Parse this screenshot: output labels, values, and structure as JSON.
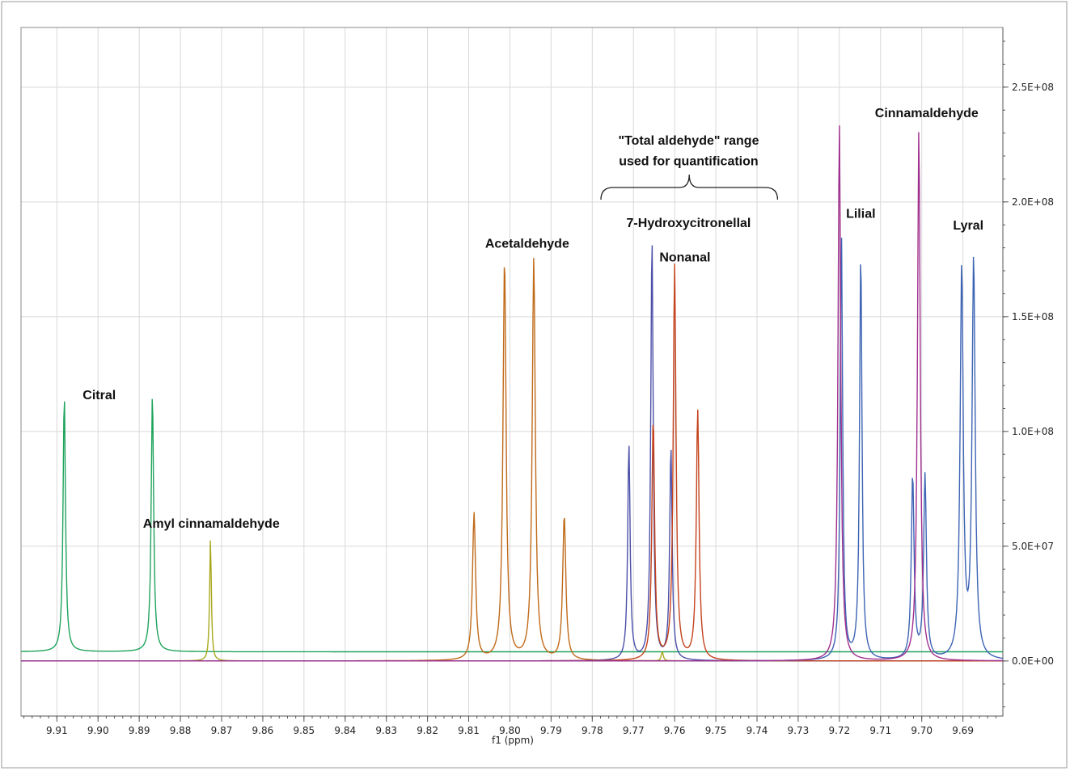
{
  "chart_data": {
    "type": "line",
    "title": "",
    "xlabel": "f1 (ppm)",
    "ylabel": "",
    "x_reversed": true,
    "xlim": [
      9.9187,
      9.6803
    ],
    "ylim": [
      -24000000,
      276000000
    ],
    "grid": true,
    "x_ticks": [
      9.91,
      9.9,
      9.89,
      9.88,
      9.87,
      9.86,
      9.85,
      9.84,
      9.83,
      9.82,
      9.81,
      9.8,
      9.79,
      9.78,
      9.77,
      9.76,
      9.75,
      9.74,
      9.73,
      9.72,
      9.71,
      9.7,
      9.69
    ],
    "x_tick_labels": [
      "9.91",
      "9.90",
      "9.89",
      "9.88",
      "9.87",
      "9.86",
      "9.85",
      "9.84",
      "9.83",
      "9.82",
      "9.81",
      "9.80",
      "9.79",
      "9.78",
      "9.77",
      "9.76",
      "9.75",
      "9.74",
      "9.73",
      "9.72",
      "9.71",
      "9.70",
      "9.69"
    ],
    "y_ticks": [
      0,
      50000000,
      100000000,
      150000000,
      200000000,
      250000000
    ],
    "y_tick_labels": [
      "0.0E+00",
      "5.0E+07",
      "1.0E+08",
      "1.5E+08",
      "2.0E+08",
      "2.5E+08"
    ],
    "series": [
      {
        "color": "#1fa35c",
        "baseline": 4000000,
        "peaks": [
          [
            9.9082,
            112000000,
            0.0007
          ],
          [
            9.8868,
            113000000,
            0.0007
          ]
        ]
      },
      {
        "color": "#a8a81c",
        "baseline": 0,
        "peaks": [
          [
            9.8727,
            53000000,
            0.0005
          ],
          [
            9.763,
            4000000,
            0.0006
          ]
        ]
      },
      {
        "color": "#c06a1a",
        "baseline": 0,
        "peaks": [
          [
            9.8087,
            64000000,
            0.0009
          ],
          [
            9.8013,
            175000000,
            0.0009
          ],
          [
            9.7942,
            175000000,
            0.0009
          ],
          [
            9.7868,
            63000000,
            0.0009
          ]
        ]
      },
      {
        "color": "#4b4fa8",
        "baseline": 0,
        "peaks": [
          [
            9.7711,
            94000000,
            0.0007
          ],
          [
            9.7655,
            185000000,
            0.0007
          ],
          [
            9.7609,
            93000000,
            0.0007
          ]
        ]
      },
      {
        "color": "#c4421c",
        "baseline": 0,
        "peaks": [
          [
            9.7652,
            105000000,
            0.0008
          ],
          [
            9.76,
            172000000,
            0.0008
          ],
          [
            9.7544,
            109000000,
            0.0008
          ]
        ]
      },
      {
        "color": "#3d64b4",
        "baseline": 0,
        "peaks": [
          [
            9.7195,
            185000000,
            0.0007
          ],
          [
            9.7148,
            178000000,
            0.0007
          ],
          [
            9.7022,
            80000000,
            0.0008
          ],
          [
            9.6992,
            80000000,
            0.0008
          ],
          [
            9.6903,
            170000000,
            0.0009
          ],
          [
            9.6874,
            174000000,
            0.0009
          ]
        ]
      },
      {
        "color": "#a0308f",
        "baseline": 0,
        "peaks": [
          [
            9.72,
            234000000,
            0.0008
          ],
          [
            9.7007,
            232000000,
            0.0008
          ]
        ]
      }
    ],
    "annotations": [
      {
        "text": "Citral",
        "x": 9.8997,
        "y": 114000000,
        "anchor": "middle"
      },
      {
        "text": "Amyl cinnamaldehyde",
        "x": 9.8725,
        "y": 58000000,
        "anchor": "middle"
      },
      {
        "text": "Acetaldehyde",
        "x": 9.7958,
        "y": 180000000,
        "anchor": "middle"
      },
      {
        "text": "7-Hydroxycitronellal",
        "x": 9.7566,
        "y": 189000000,
        "anchor": "middle"
      },
      {
        "text": "Nonanal",
        "x": 9.7575,
        "y": 174000000,
        "anchor": "middle"
      },
      {
        "text": "Lilial",
        "x": 9.7148,
        "y": 193000000,
        "anchor": "middle"
      },
      {
        "text": "Cinnamaldehyde",
        "x": 9.6988,
        "y": 237000000,
        "anchor": "middle"
      },
      {
        "text": "Lyral",
        "x": 9.6887,
        "y": 188000000,
        "anchor": "middle"
      },
      {
        "text": "\"Total aldehyde\" range",
        "x": 9.7566,
        "y": 225000000,
        "anchor": "middle"
      },
      {
        "text": "used for quantification",
        "x": 9.7566,
        "y": 216000000,
        "anchor": "middle"
      }
    ],
    "brace": {
      "x_start": 9.7779,
      "x_end": 9.735
    }
  }
}
